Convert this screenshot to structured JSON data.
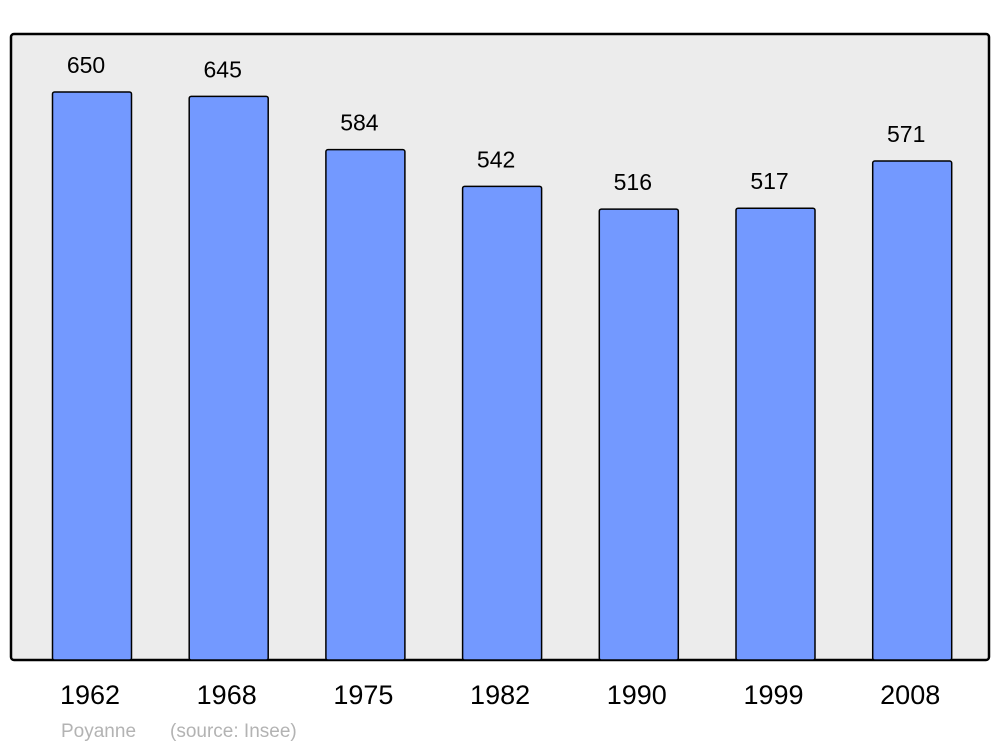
{
  "chart_data": {
    "type": "bar",
    "categories": [
      "1962",
      "1968",
      "1975",
      "1982",
      "1990",
      "1999",
      "2008"
    ],
    "values": [
      650,
      645,
      584,
      542,
      516,
      517,
      571
    ],
    "title": "",
    "xlabel": "",
    "ylabel": "",
    "ylim": [
      0,
      716
    ],
    "grid": false,
    "data_labels": true,
    "colors": {
      "bar": "#7399ff",
      "plot_background": "#ececec",
      "stroke": "#000000",
      "footer": "#b3b3b3"
    }
  },
  "footer": {
    "place": "Poyanne",
    "source": "(source: Insee)"
  }
}
